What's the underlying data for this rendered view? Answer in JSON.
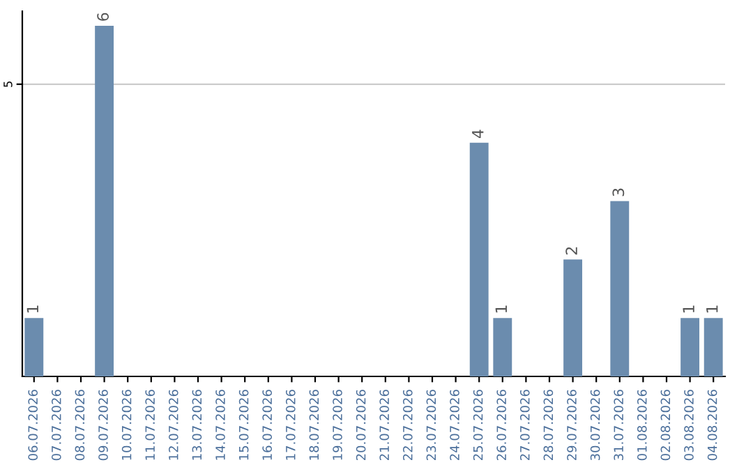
{
  "chart_data": {
    "type": "bar",
    "categories": [
      "06.07.2026",
      "07.07.2026",
      "08.07.2026",
      "09.07.2026",
      "10.07.2026",
      "11.07.2026",
      "12.07.2026",
      "13.07.2026",
      "14.07.2026",
      "15.07.2026",
      "16.07.2026",
      "17.07.2026",
      "18.07.2026",
      "19.07.2026",
      "20.07.2026",
      "21.07.2026",
      "22.07.2026",
      "23.07.2026",
      "24.07.2026",
      "25.07.2026",
      "26.07.2026",
      "27.07.2026",
      "28.07.2026",
      "29.07.2026",
      "30.07.2026",
      "31.07.2026",
      "01.08.2026",
      "02.08.2026",
      "03.08.2026",
      "04.08.2026"
    ],
    "values": [
      1,
      0,
      0,
      6,
      0,
      0,
      0,
      0,
      0,
      0,
      0,
      0,
      0,
      0,
      0,
      0,
      0,
      0,
      0,
      4,
      1,
      0,
      0,
      2,
      0,
      3,
      0,
      0,
      1,
      1
    ],
    "value_labels": [
      "1",
      null,
      null,
      "6",
      null,
      null,
      null,
      null,
      null,
      null,
      null,
      null,
      null,
      null,
      null,
      null,
      null,
      null,
      null,
      "4",
      "1",
      null,
      null,
      "2",
      null,
      "3",
      null,
      null,
      "1",
      "1"
    ],
    "color": "#6b8cae",
    "ylim": [
      0,
      6.25
    ],
    "yticks": [
      5
    ],
    "grid": "y"
  }
}
